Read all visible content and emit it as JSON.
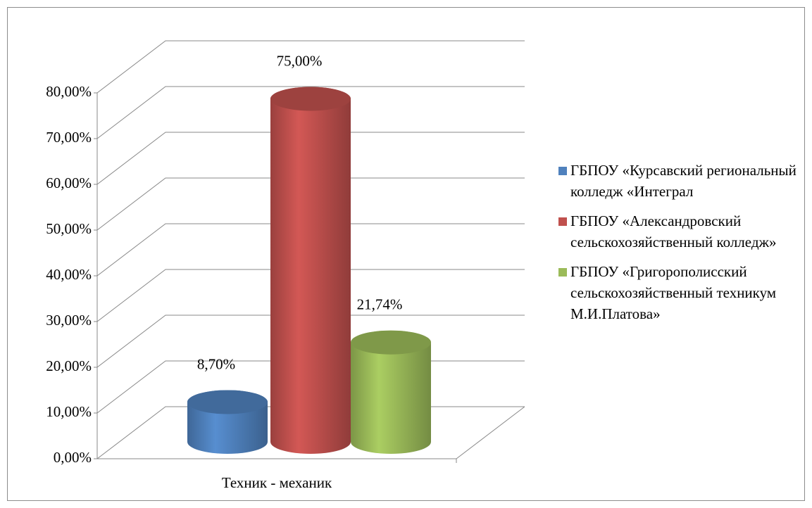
{
  "chart_data": {
    "type": "bar3d",
    "categories": [
      "Техник - механик"
    ],
    "series": [
      {
        "name": "ГБПОУ «Курсавский региональный колледж «Интеграл",
        "color": "#4f81bd",
        "values": [
          8.7
        ],
        "value_labels": [
          "8,70%"
        ]
      },
      {
        "name": "ГБПОУ «Александровский сельскохозяйственный колледж»",
        "color": "#c0504d",
        "values": [
          75
        ],
        "value_labels": [
          "75,00%"
        ]
      },
      {
        "name": "ГБПОУ «Григорополисский сельскохозяйственный техникум М.И.Платова»",
        "color": "#9bbb59",
        "values": [
          21.74
        ],
        "value_labels": [
          "21,74%"
        ]
      }
    ],
    "ylim": [
      0,
      80
    ],
    "yticks": [
      {
        "value": 0,
        "label": "0,00%"
      },
      {
        "value": 10,
        "label": "10,00%"
      },
      {
        "value": 20,
        "label": "20,00%"
      },
      {
        "value": 30,
        "label": "30,00%"
      },
      {
        "value": 40,
        "label": "40,00%"
      },
      {
        "value": 50,
        "label": "50,00%"
      },
      {
        "value": 60,
        "label": "60,00%"
      },
      {
        "value": 70,
        "label": "70,00%"
      },
      {
        "value": 80,
        "label": "80,00%"
      }
    ],
    "grid": true,
    "legend": "right"
  }
}
